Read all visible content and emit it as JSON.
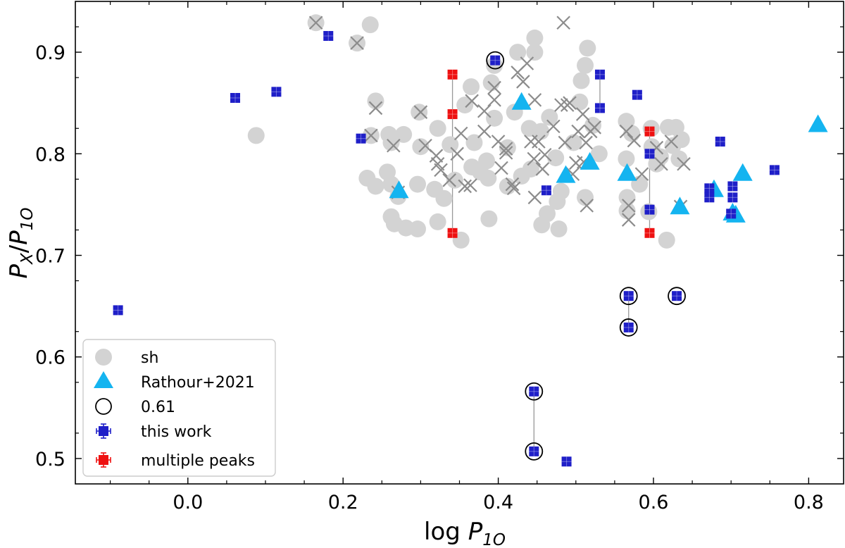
{
  "chart_data": {
    "type": "scatter",
    "title": "",
    "xlabel": {
      "base": "log ",
      "var": "P",
      "sub": "1O"
    },
    "ylabel": {
      "var1": "P",
      "sub1": "X",
      "slash": "/",
      "var2": "P",
      "sub2": "1O"
    },
    "xlim": [
      -0.145,
      0.845
    ],
    "ylim": [
      0.475,
      0.95
    ],
    "xticks": [
      0.0,
      0.2,
      0.4,
      0.6,
      0.8
    ],
    "xtick_labels": [
      "0.0",
      "0.2",
      "0.4",
      "0.6",
      "0.8"
    ],
    "yticks": [
      0.5,
      0.6,
      0.7,
      0.8,
      0.9
    ],
    "ytick_labels": [
      "0.5",
      "0.6",
      "0.7",
      "0.8",
      "0.9"
    ],
    "colors": {
      "sh": "#d3d3d3",
      "sh_cross": "#8c8c8c",
      "rathour": "#14b4f0",
      "this_work": "#1f1fc8",
      "multiple": "#ee1111",
      "link": "#999999"
    },
    "legend": {
      "position": "lower-left",
      "entries": [
        {
          "key": "sh",
          "label": "sh",
          "marker": "circle"
        },
        {
          "key": "rathour",
          "label": "Rathour+2021",
          "marker": "triangle"
        },
        {
          "key": "ring",
          "label": "0.61",
          "marker": "open-circle"
        },
        {
          "key": "this_work",
          "label": "this work",
          "marker": "square-errorbar"
        },
        {
          "key": "multiple",
          "label": "multiple peaks",
          "marker": "square-errorbar"
        }
      ]
    },
    "series": [
      {
        "name": "sh",
        "marker": "circle",
        "points": [
          [
            0.165,
            0.929
          ],
          [
            0.218,
            0.909
          ],
          [
            0.235,
            0.927
          ],
          [
            0.088,
            0.818
          ],
          [
            0.242,
            0.852
          ],
          [
            0.236,
            0.818
          ],
          [
            0.231,
            0.776
          ],
          [
            0.242,
            0.768
          ],
          [
            0.257,
            0.782
          ],
          [
            0.262,
            0.77
          ],
          [
            0.271,
            0.758
          ],
          [
            0.262,
            0.738
          ],
          [
            0.266,
            0.731
          ],
          [
            0.281,
            0.727
          ],
          [
            0.296,
            0.726
          ],
          [
            0.296,
            0.77
          ],
          [
            0.259,
            0.819
          ],
          [
            0.262,
            0.811
          ],
          [
            0.278,
            0.819
          ],
          [
            0.298,
            0.841
          ],
          [
            0.3,
            0.807
          ],
          [
            0.322,
            0.825
          ],
          [
            0.322,
            0.733
          ],
          [
            0.352,
            0.715
          ],
          [
            0.338,
            0.809
          ],
          [
            0.344,
            0.774
          ],
          [
            0.357,
            0.848
          ],
          [
            0.365,
            0.866
          ],
          [
            0.366,
            0.787
          ],
          [
            0.377,
            0.782
          ],
          [
            0.387,
            0.776
          ],
          [
            0.388,
            0.736
          ],
          [
            0.385,
            0.793
          ],
          [
            0.391,
            0.87
          ],
          [
            0.395,
            0.887
          ],
          [
            0.395,
            0.835
          ],
          [
            0.412,
            0.806
          ],
          [
            0.412,
            0.768
          ],
          [
            0.425,
            0.9
          ],
          [
            0.43,
            0.778
          ],
          [
            0.44,
            0.825
          ],
          [
            0.442,
            0.785
          ],
          [
            0.447,
            0.914
          ],
          [
            0.447,
            0.9
          ],
          [
            0.455,
            0.822
          ],
          [
            0.456,
            0.73
          ],
          [
            0.463,
            0.741
          ],
          [
            0.474,
            0.796
          ],
          [
            0.476,
            0.753
          ],
          [
            0.478,
            0.726
          ],
          [
            0.497,
            0.811
          ],
          [
            0.505,
            0.851
          ],
          [
            0.507,
            0.872
          ],
          [
            0.512,
            0.887
          ],
          [
            0.512,
            0.757
          ],
          [
            0.515,
            0.904
          ],
          [
            0.522,
            0.828
          ],
          [
            0.53,
            0.8
          ],
          [
            0.565,
            0.832
          ],
          [
            0.565,
            0.795
          ],
          [
            0.566,
            0.757
          ],
          [
            0.566,
            0.744
          ],
          [
            0.572,
            0.82
          ],
          [
            0.582,
            0.77
          ],
          [
            0.594,
            0.743
          ],
          [
            0.597,
            0.825
          ],
          [
            0.598,
            0.807
          ],
          [
            0.604,
            0.79
          ],
          [
            0.609,
            0.797
          ],
          [
            0.617,
            0.715
          ],
          [
            0.619,
            0.826
          ],
          [
            0.625,
            0.808
          ],
          [
            0.629,
            0.826
          ],
          [
            0.633,
            0.795
          ],
          [
            0.636,
            0.814
          ],
          [
            0.466,
            0.836
          ],
          [
            0.481,
            0.763
          ],
          [
            0.318,
            0.765
          ],
          [
            0.33,
            0.756
          ],
          [
            0.369,
            0.811
          ],
          [
            0.421,
            0.841
          ]
        ]
      },
      {
        "name": "sh_cross",
        "marker": "x",
        "points": [
          [
            0.165,
            0.929
          ],
          [
            0.218,
            0.909
          ],
          [
            0.242,
            0.845
          ],
          [
            0.236,
            0.818
          ],
          [
            0.265,
            0.808
          ],
          [
            0.271,
            0.762
          ],
          [
            0.3,
            0.841
          ],
          [
            0.306,
            0.808
          ],
          [
            0.32,
            0.798
          ],
          [
            0.322,
            0.79
          ],
          [
            0.326,
            0.784
          ],
          [
            0.347,
            0.8
          ],
          [
            0.357,
            0.768
          ],
          [
            0.364,
            0.769
          ],
          [
            0.366,
            0.852
          ],
          [
            0.382,
            0.822
          ],
          [
            0.395,
            0.865
          ],
          [
            0.395,
            0.853
          ],
          [
            0.4,
            0.812
          ],
          [
            0.404,
            0.786
          ],
          [
            0.41,
            0.801
          ],
          [
            0.41,
            0.805
          ],
          [
            0.418,
            0.77
          ],
          [
            0.425,
            0.88
          ],
          [
            0.432,
            0.871
          ],
          [
            0.437,
            0.889
          ],
          [
            0.442,
            0.812
          ],
          [
            0.446,
            0.795
          ],
          [
            0.447,
            0.853
          ],
          [
            0.452,
            0.812
          ],
          [
            0.457,
            0.785
          ],
          [
            0.46,
            0.799
          ],
          [
            0.471,
            0.827
          ],
          [
            0.481,
            0.848
          ],
          [
            0.484,
            0.929
          ],
          [
            0.486,
            0.811
          ],
          [
            0.489,
            0.848
          ],
          [
            0.492,
            0.85
          ],
          [
            0.496,
            0.78
          ],
          [
            0.5,
            0.791
          ],
          [
            0.503,
            0.822
          ],
          [
            0.509,
            0.839
          ],
          [
            0.51,
            0.792
          ],
          [
            0.513,
            0.811
          ],
          [
            0.514,
            0.749
          ],
          [
            0.519,
            0.822
          ],
          [
            0.524,
            0.826
          ],
          [
            0.565,
            0.822
          ],
          [
            0.568,
            0.749
          ],
          [
            0.568,
            0.735
          ],
          [
            0.575,
            0.813
          ],
          [
            0.585,
            0.78
          ],
          [
            0.604,
            0.806
          ],
          [
            0.61,
            0.79
          ],
          [
            0.623,
            0.812
          ],
          [
            0.635,
            0.748
          ],
          [
            0.639,
            0.79
          ],
          [
            0.382,
            0.842
          ],
          [
            0.42,
            0.766
          ],
          [
            0.447,
            0.757
          ],
          [
            0.337,
            0.774
          ],
          [
            0.352,
            0.82
          ]
        ]
      },
      {
        "name": "Rathour+2021",
        "marker": "triangle",
        "points": [
          [
            0.272,
            0.764
          ],
          [
            0.43,
            0.851
          ],
          [
            0.487,
            0.779
          ],
          [
            0.518,
            0.792
          ],
          [
            0.566,
            0.781
          ],
          [
            0.634,
            0.748
          ],
          [
            0.678,
            0.765
          ],
          [
            0.702,
            0.742
          ],
          [
            0.715,
            0.781
          ],
          [
            0.812,
            0.829
          ],
          [
            0.706,
            0.74
          ]
        ]
      },
      {
        "name": "0.61",
        "marker": "open-circle",
        "points": [
          [
            0.396,
            0.892
          ],
          [
            0.568,
            0.66
          ],
          [
            0.568,
            0.629
          ],
          [
            0.63,
            0.66
          ],
          [
            0.446,
            0.566
          ],
          [
            0.446,
            0.507
          ]
        ]
      },
      {
        "name": "this work",
        "marker": "square",
        "points": [
          [
            -0.09,
            0.646
          ],
          [
            0.061,
            0.855
          ],
          [
            0.114,
            0.861
          ],
          [
            0.181,
            0.916
          ],
          [
            0.223,
            0.815
          ],
          [
            0.396,
            0.892
          ],
          [
            0.462,
            0.764
          ],
          [
            0.446,
            0.566
          ],
          [
            0.446,
            0.507
          ],
          [
            0.488,
            0.497
          ],
          [
            0.531,
            0.878
          ],
          [
            0.531,
            0.845
          ],
          [
            0.579,
            0.858
          ],
          [
            0.595,
            0.8
          ],
          [
            0.595,
            0.745
          ],
          [
            0.568,
            0.66
          ],
          [
            0.568,
            0.629
          ],
          [
            0.63,
            0.66
          ],
          [
            0.672,
            0.766
          ],
          [
            0.672,
            0.757
          ],
          [
            0.686,
            0.812
          ],
          [
            0.7,
            0.741
          ],
          [
            0.702,
            0.757
          ],
          [
            0.702,
            0.768
          ],
          [
            0.756,
            0.784
          ]
        ]
      },
      {
        "name": "multiple peaks",
        "marker": "square",
        "points": [
          [
            0.341,
            0.878
          ],
          [
            0.341,
            0.839
          ],
          [
            0.341,
            0.722
          ],
          [
            0.595,
            0.822
          ],
          [
            0.595,
            0.722
          ]
        ]
      }
    ],
    "links": [
      [
        [
          0.341,
          0.878
        ],
        [
          0.341,
          0.722
        ]
      ],
      [
        [
          0.595,
          0.822
        ],
        [
          0.595,
          0.722
        ]
      ],
      [
        [
          0.531,
          0.878
        ],
        [
          0.531,
          0.845
        ]
      ],
      [
        [
          0.568,
          0.66
        ],
        [
          0.568,
          0.629
        ]
      ],
      [
        [
          0.446,
          0.566
        ],
        [
          0.446,
          0.507
        ]
      ]
    ]
  }
}
